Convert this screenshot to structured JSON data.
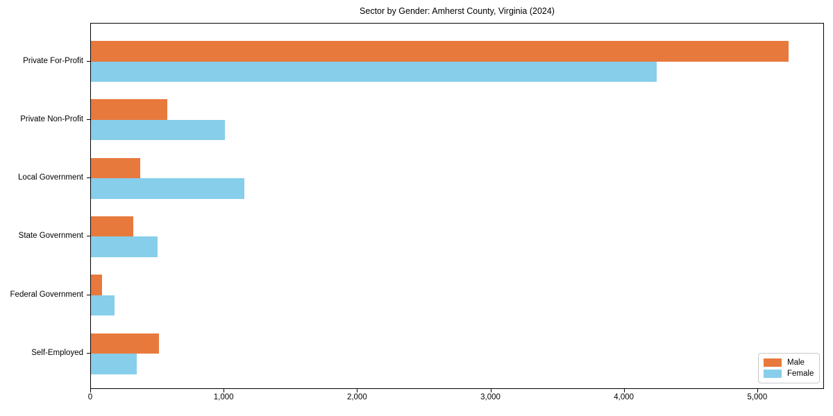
{
  "title": "Sector by Gender: Amherst County, Virginia (2024)",
  "chart_data": {
    "type": "bar",
    "orientation": "horizontal",
    "title": "Sector by Gender: Amherst County, Virginia (2024)",
    "xlabel": "",
    "ylabel": "",
    "categories": [
      "Private For-Profit",
      "Private Non-Profit",
      "Local Government",
      "State Government",
      "Federal Government",
      "Self-Employed"
    ],
    "series": [
      {
        "name": "Male",
        "color": "#e8793d",
        "values": [
          5230,
          575,
          370,
          320,
          85,
          510
        ]
      },
      {
        "name": "Female",
        "color": "#87ceeb",
        "values": [
          4240,
          1005,
          1150,
          500,
          175,
          345
        ]
      }
    ],
    "xlim": [
      0,
      5490
    ],
    "xticks": [
      0,
      1000,
      2000,
      3000,
      4000,
      5000
    ],
    "xtick_labels": [
      "0",
      "1,000",
      "2,000",
      "3,000",
      "4,000",
      "5,000"
    ],
    "grid": false,
    "legend_position": "lower right",
    "spine_color": "#000000",
    "background_color": "#ffffff"
  }
}
